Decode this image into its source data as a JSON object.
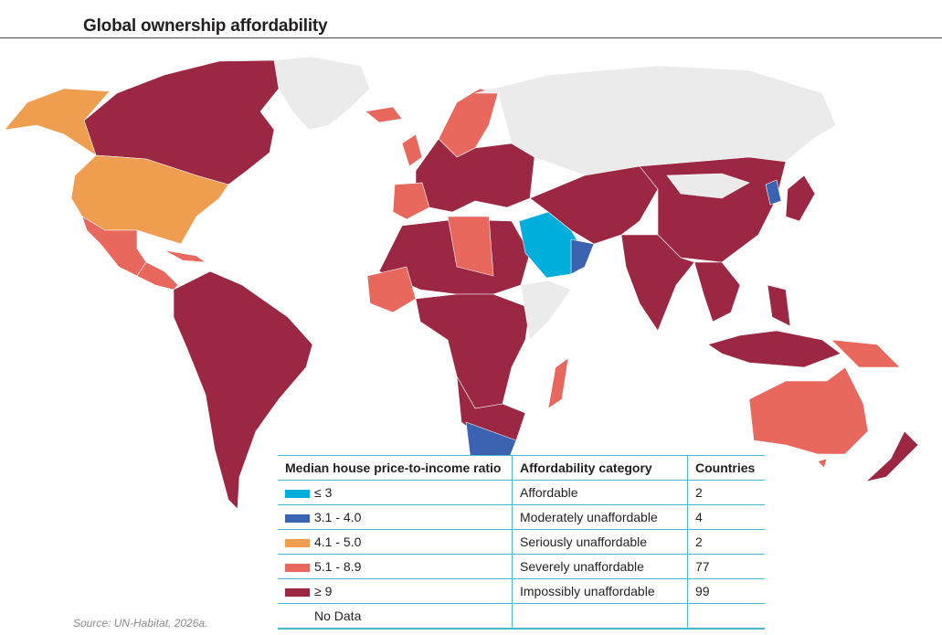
{
  "title": "Global ownership affordability",
  "source": "Source: UN-Habitat, 2026a.",
  "legend": {
    "headers": [
      "Median house price-to-income ratio",
      "Affordability category",
      "Countries"
    ],
    "rows": [
      {
        "range": "≤ 3",
        "category": "Affordable",
        "countries": "2",
        "color": "#00aedb"
      },
      {
        "range": "3.1 - 4.0",
        "category": "Moderately unaffordable",
        "countries": "4",
        "color": "#3b63b2"
      },
      {
        "range": "4.1 - 5.0",
        "category": "Seriously unaffordable",
        "countries": "2",
        "color": "#ef9d4f"
      },
      {
        "range": "5.1 - 8.9",
        "category": "Severely unaffordable",
        "countries": "77",
        "color": "#e8685d"
      },
      {
        "range": "≥ 9",
        "category": "Impossibly unaffordable",
        "countries": "99",
        "color": "#9b2743"
      },
      {
        "range": "No Data",
        "category": "",
        "countries": "",
        "color": "#ebebec"
      }
    ]
  },
  "map_regions": [
    {
      "name": "Canada",
      "category": "≥ 9"
    },
    {
      "name": "Alaska",
      "category": "4.1 - 5.0"
    },
    {
      "name": "United States",
      "category": "4.1 - 5.0"
    },
    {
      "name": "Mexico",
      "category": "5.1 - 8.9"
    },
    {
      "name": "Central America",
      "category": "5.1 - 8.9"
    },
    {
      "name": "South America",
      "category": "≥ 9"
    },
    {
      "name": "Greenland",
      "category": "No Data"
    },
    {
      "name": "Iceland",
      "category": "5.1 - 8.9"
    },
    {
      "name": "Scandinavia",
      "category": "5.1 - 8.9"
    },
    {
      "name": "Europe",
      "category": "≥ 9"
    },
    {
      "name": "Iberia",
      "category": "5.1 - 8.9"
    },
    {
      "name": "Russia",
      "category": "No Data"
    },
    {
      "name": "North Africa",
      "category": "≥ 9"
    },
    {
      "name": "Libya",
      "category": "5.1 - 8.9"
    },
    {
      "name": "West Africa",
      "category": "5.1 - 8.9"
    },
    {
      "name": "Central Africa",
      "category": "≥ 9"
    },
    {
      "name": "Horn of Africa",
      "category": "No Data"
    },
    {
      "name": "Saudi Arabia",
      "category": "≤ 3"
    },
    {
      "name": "Oman",
      "category": "3.1 - 4.0"
    },
    {
      "name": "Middle East & Central Asia",
      "category": "≥ 9"
    },
    {
      "name": "China",
      "category": "≥ 9"
    },
    {
      "name": "Mongolia",
      "category": "No Data"
    },
    {
      "name": "Korea",
      "category": "3.1 - 4.0"
    },
    {
      "name": "Japan",
      "category": "≥ 9"
    },
    {
      "name": "South Asia",
      "category": "≥ 9"
    },
    {
      "name": "Southeast Asia",
      "category": "≥ 9"
    },
    {
      "name": "Indonesia",
      "category": "≥ 9"
    },
    {
      "name": "Australia",
      "category": "5.1 - 8.9"
    },
    {
      "name": "New Zealand",
      "category": "≥ 9"
    },
    {
      "name": "South Africa",
      "category": "3.1 - 4.0"
    },
    {
      "name": "Madagascar",
      "category": "5.1 - 8.9"
    }
  ]
}
